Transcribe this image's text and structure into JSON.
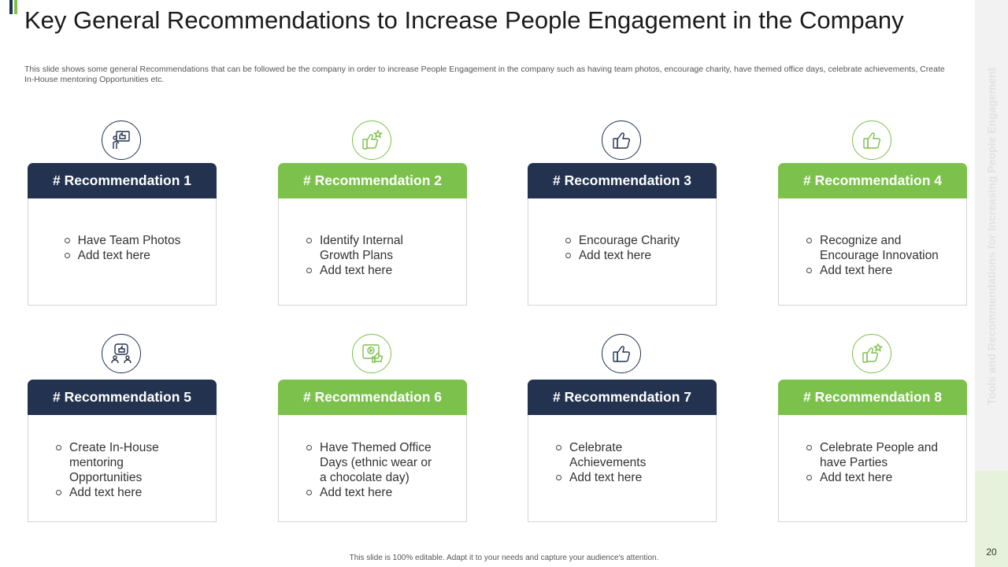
{
  "slide": {
    "title": "Key General Recommendations to Increase People Engagement in the Company",
    "subtitle": "This slide shows some general Recommendations that can be followed be the company in order to increase People Engagement in the company such as having team photos, encourage charity, have themed office days, celebrate achievements, Create In-House mentoring Opportunities etc.",
    "sidebar_text": "Tools and Recommendations for Increasing People Engagement",
    "page_number": "20",
    "footer": "This slide is 100% editable. Adapt it to your needs and capture your audience's attention."
  },
  "colors": {
    "navy": "#23334f",
    "green": "#7cc14b"
  },
  "recommendations": [
    {
      "title": "# Recommendation 1",
      "theme": "navy",
      "icon": "team-photo-icon",
      "items": [
        "Have Team Photos",
        "Add text here"
      ]
    },
    {
      "title": "# Recommendation 2",
      "theme": "green",
      "icon": "thumbs-up-star-icon",
      "items": [
        "Identify Internal Growth Plans",
        "Add text here"
      ]
    },
    {
      "title": "# Recommendation 3",
      "theme": "navy",
      "icon": "thumbs-up-icon",
      "items": [
        "Encourage Charity",
        "Add text here"
      ]
    },
    {
      "title": "# Recommendation 4",
      "theme": "green",
      "icon": "thumbs-up-icon",
      "items": [
        "Recognize and Encourage Innovation",
        "Add text here"
      ]
    },
    {
      "title": "# Recommendation 5",
      "theme": "navy",
      "icon": "people-like-icon",
      "items": [
        "Create In-House mentoring Opportunities",
        "Add text here"
      ]
    },
    {
      "title": "# Recommendation 6",
      "theme": "green",
      "icon": "video-like-icon",
      "items": [
        "Have Themed Office Days (ethnic wear or a chocolate day)",
        "Add text here"
      ]
    },
    {
      "title": "# Recommendation 7",
      "theme": "navy",
      "icon": "thumbs-up-icon",
      "items": [
        "Celebrate Achievements",
        "Add text here"
      ]
    },
    {
      "title": "# Recommendation 8",
      "theme": "green",
      "icon": "thumbs-up-star-icon",
      "items": [
        "Celebrate People and have Parties",
        "Add text here"
      ]
    }
  ]
}
